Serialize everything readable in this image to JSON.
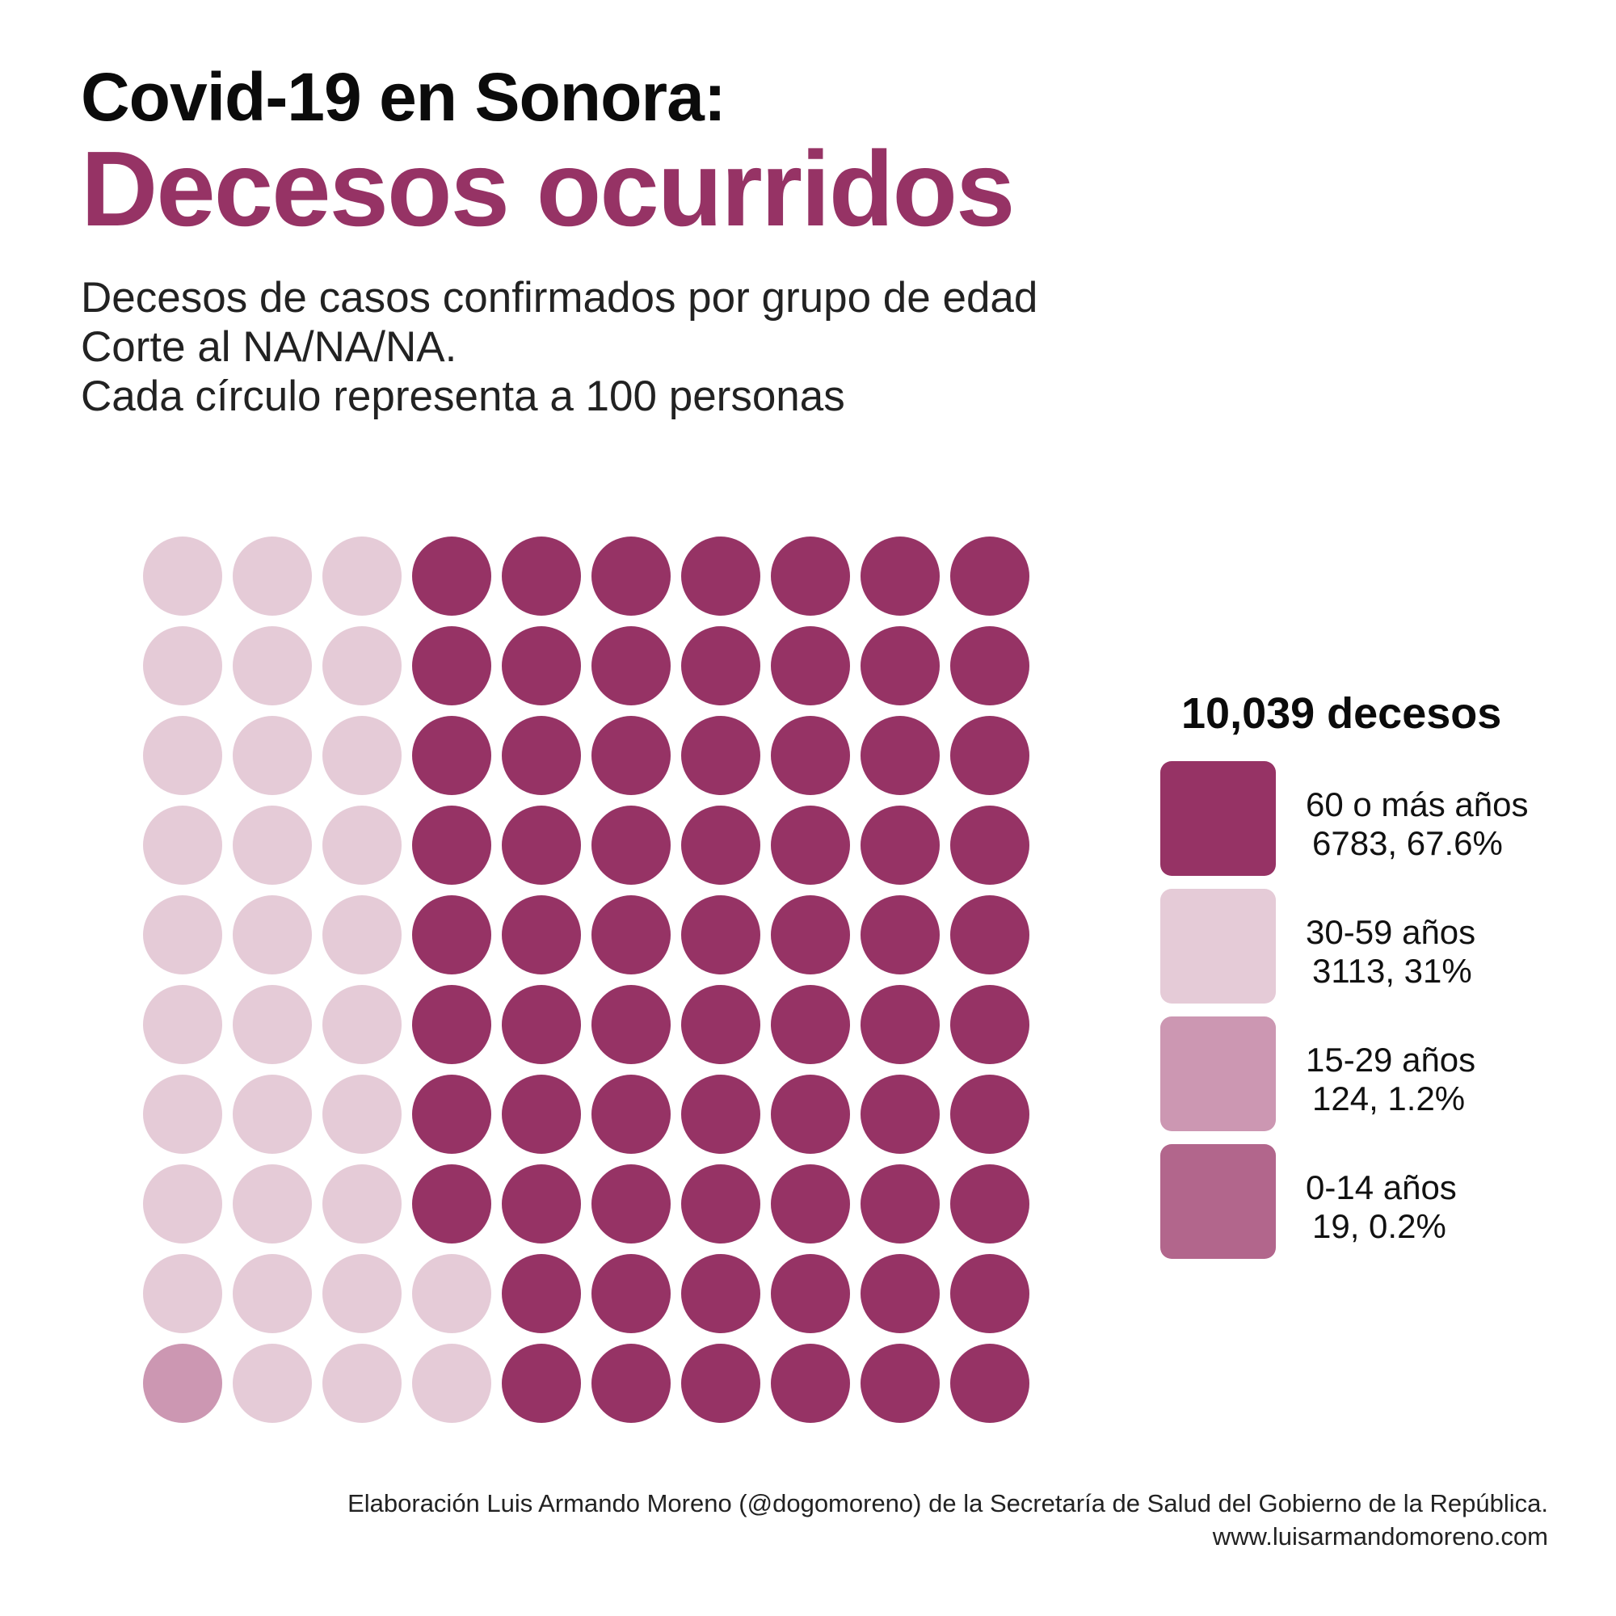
{
  "header": {
    "title_top": "Covid-19 en Sonora:",
    "title_main": "Decesos ocurridos",
    "subtitle_lines": [
      "Decesos de casos confirmados por grupo de edad",
      "Corte al NA/NA/NA.",
      "Cada círculo representa a 100 personas"
    ]
  },
  "colors": {
    "accent": "#963365",
    "age_60_plus": "#963365",
    "age_30_59": "#e5cbd7",
    "age_15_29": "#cc97b2",
    "age_0_14": "#b2668c"
  },
  "legend": {
    "total": "10,039 decesos",
    "items": [
      {
        "label": "60 o más años",
        "value": "6783, 67.6%",
        "color": "#963365"
      },
      {
        "label": "30-59 años",
        "value": "3113, 31%",
        "color": "#e5cbd7"
      },
      {
        "label": "15-29 años",
        "value": "124, 1.2%",
        "color": "#cc97b2"
      },
      {
        "label": "0-14 años",
        "value": "19, 0.2%",
        "color": "#b2668c"
      }
    ]
  },
  "chart_data": {
    "type": "waffle",
    "unit": "Cada círculo representa a 100 personas",
    "total": 10039,
    "categories": [
      "60 o más años",
      "30-59 años",
      "15-29 años",
      "0-14 años"
    ],
    "values": [
      6783,
      3113,
      124,
      19
    ],
    "percentages": [
      67.6,
      31,
      1.2,
      0.2
    ],
    "circle_counts": [
      68,
      31,
      1,
      0
    ],
    "grid": {
      "rows": 10,
      "columns": 10
    }
  },
  "footer": {
    "credit_line": "Elaboración Luis Armando Moreno (@dogomoreno) de la Secretaría de Salud del Gobierno de la República.",
    "website": "www.luisarmandomoreno.com"
  }
}
